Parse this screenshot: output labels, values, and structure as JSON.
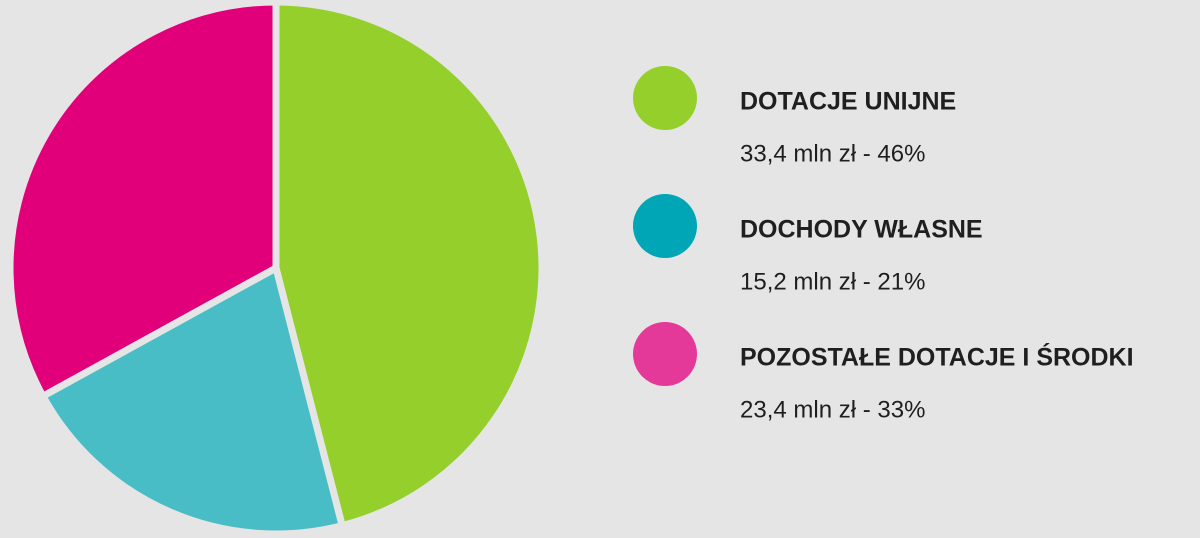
{
  "chart_data": {
    "type": "pie",
    "categories": [
      "DOTACJE UNIJNE",
      "DOCHODY WŁASNE",
      "POZOSTAŁE DOTACJE I ŚRODKI"
    ],
    "values": [
      46,
      21,
      33
    ],
    "value_labels": [
      "33,4 mln zł - 46%",
      "15,2 mln zł - 21%",
      "23,4 mln zł - 33%"
    ],
    "colors": [
      "#95cf2b",
      "#49bdc6",
      "#e2007a"
    ],
    "legend_colors": [
      "#95cf2b",
      "#00a5b6",
      "#e5399a"
    ],
    "legend": "right"
  }
}
